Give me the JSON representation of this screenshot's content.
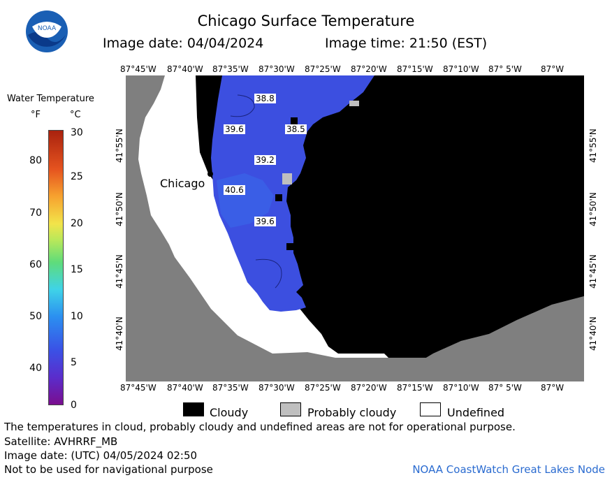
{
  "header": {
    "title": "Chicago Surface Temperature",
    "image_date": "Image date: 04/04/2024",
    "image_time": "Image time: 21:50 (EST)"
  },
  "logo": {
    "text": "NOAA"
  },
  "legend": {
    "title": "Water Temperature",
    "unit_f": "°F",
    "unit_c": "°C",
    "f_ticks": [
      "80",
      "70",
      "60",
      "50",
      "40"
    ],
    "c_ticks": [
      "30",
      "25",
      "20",
      "15",
      "10",
      "5",
      "0"
    ]
  },
  "map": {
    "lon_labels": [
      "87°45'W",
      "87°40'W",
      "87°35'W",
      "87°30'W",
      "87°25'W",
      "87°20'W",
      "87°15'W",
      "87°10'W",
      "87° 5'W",
      "87°W"
    ],
    "lat_labels": [
      "41°55'N",
      "41°50'N",
      "41°45'N",
      "41°40'N"
    ],
    "city": "Chicago",
    "temp_labels": [
      "38.8",
      "39.6",
      "38.5",
      "39.2",
      "40.6",
      "39.6"
    ],
    "colors": {
      "land": "#7f7f7f",
      "cloudy": "#000000",
      "probably_cloudy": "#bfbfbf",
      "undefined": "#ffffff",
      "water": "#3c4fe0",
      "water_warm": "#2f7ae8"
    }
  },
  "key": {
    "cloudy": "Cloudy",
    "probably_cloudy": "Probably cloudy",
    "undefined": "Undefined"
  },
  "footer": {
    "note": "The temperatures in cloud, probably cloudy and undefined areas are not for operational purpose.",
    "satellite": "Satellite: AVHRRF_MB",
    "utc_date": "Image date: (UTC) 04/05/2024  02:50",
    "nav": "Not to be used for navigational purpose",
    "credit": "NOAA CoastWatch Great Lakes Node"
  }
}
